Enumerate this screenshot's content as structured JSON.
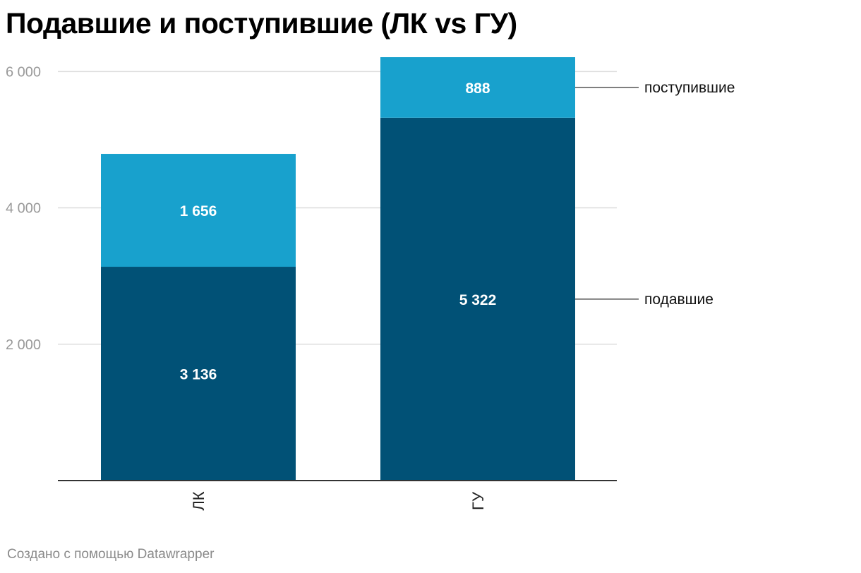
{
  "title": "Подавшие и поступившие (ЛК vs ГУ)",
  "footer": "Создано с помощью Datawrapper",
  "colors": {
    "подавшие": "#015176",
    "поступившие": "#18a1cd",
    "grid": "#dddddd",
    "axis": "#333333",
    "connector": "#555555"
  },
  "chart_data": {
    "type": "bar",
    "stacked": true,
    "categories": [
      "ЛК",
      "ГУ"
    ],
    "series": [
      {
        "name": "подавшие",
        "values": [
          3136,
          5322
        ],
        "labels": [
          "3 136",
          "5 322"
        ]
      },
      {
        "name": "поступившие",
        "values": [
          1656,
          888
        ],
        "labels": [
          "1 656",
          "888"
        ]
      }
    ],
    "yticks": [
      2000,
      4000,
      6000
    ],
    "ytick_labels": [
      "2 000",
      "4 000",
      "6 000"
    ],
    "ylim": [
      0,
      6200
    ],
    "grid": true,
    "legend": "right, direct labels"
  }
}
